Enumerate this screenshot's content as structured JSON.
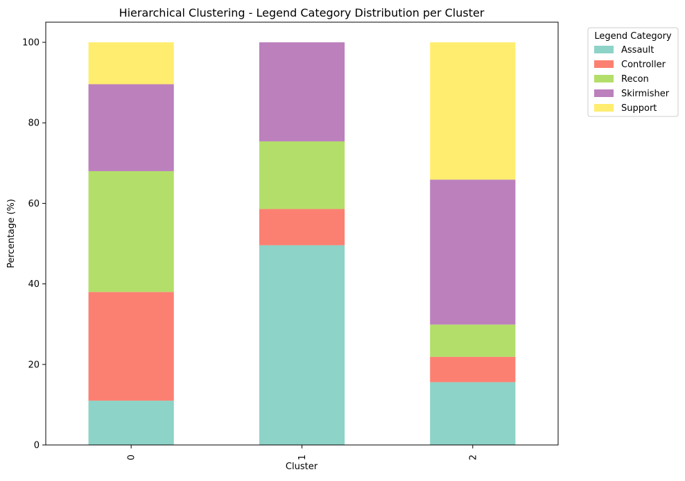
{
  "chart_data": {
    "type": "bar",
    "stacked": true,
    "title": "Hierarchical Clustering - Legend Category Distribution per Cluster",
    "xlabel": "Cluster",
    "ylabel": "Percentage (%)",
    "categories": [
      "0",
      "1",
      "2"
    ],
    "ylim": [
      0,
      105
    ],
    "yticks": [
      0,
      20,
      40,
      60,
      80,
      100
    ],
    "grid": false,
    "legend": {
      "title": "Legend Category",
      "placement": "outside top-right"
    },
    "series": [
      {
        "name": "Assault",
        "color": "#8dd3c7",
        "values": [
          11.0,
          49.6,
          15.6
        ]
      },
      {
        "name": "Controller",
        "color": "#fb8072",
        "values": [
          27.0,
          9.0,
          6.3
        ]
      },
      {
        "name": "Recon",
        "color": "#b3de69",
        "values": [
          30.0,
          16.8,
          8.0
        ]
      },
      {
        "name": "Skirmisher",
        "color": "#bc80bd",
        "values": [
          21.6,
          24.6,
          36.0
        ]
      },
      {
        "name": "Support",
        "color": "#ffed6f",
        "values": [
          10.4,
          0.0,
          34.1
        ]
      }
    ]
  }
}
